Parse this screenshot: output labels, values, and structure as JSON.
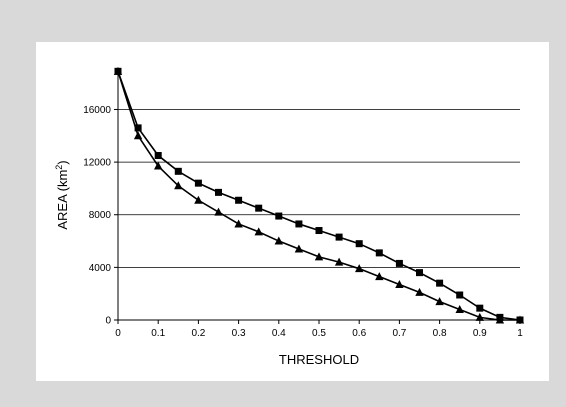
{
  "chart_data": {
    "type": "line",
    "title": "",
    "xlabel": "THRESHOLD",
    "ylabel_main": "AREA (km",
    "ylabel_sup": "2",
    "ylabel_tail": ")",
    "xlim": [
      0,
      1
    ],
    "ylim": [
      0,
      19000
    ],
    "x_ticks": [
      "0",
      "0.1",
      "0.2",
      "0.3",
      "0.4",
      "0.5",
      "0.6",
      "0.7",
      "0.8",
      "0.9",
      "1"
    ],
    "y_ticks": [
      "0",
      "4000",
      "8000",
      "12000",
      "16000"
    ],
    "grid": "horizontal",
    "legend": "none",
    "x": [
      0,
      0.05,
      0.1,
      0.15,
      0.2,
      0.25,
      0.3,
      0.35,
      0.4,
      0.45,
      0.5,
      0.55,
      0.6,
      0.65,
      0.7,
      0.75,
      0.8,
      0.85,
      0.9,
      0.95,
      1
    ],
    "series": [
      {
        "marker": "square",
        "color": "#000000",
        "values": [
          18900,
          14600,
          12500,
          11300,
          10400,
          9700,
          9100,
          8500,
          7900,
          7300,
          6800,
          6300,
          5800,
          5100,
          4300,
          3600,
          2800,
          1900,
          900,
          200,
          0
        ]
      },
      {
        "marker": "triangle",
        "color": "#000000",
        "values": [
          18900,
          14000,
          11700,
          10200,
          9100,
          8200,
          7300,
          6700,
          6000,
          5400,
          4800,
          4400,
          3900,
          3300,
          2700,
          2100,
          1400,
          800,
          200,
          0,
          0
        ]
      }
    ]
  }
}
